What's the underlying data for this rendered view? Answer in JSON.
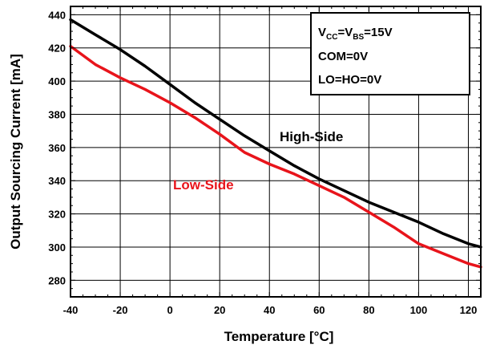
{
  "chart_data": {
    "type": "line",
    "xlabel": "Temperature [°C]",
    "ylabel": "Output Sourcing Current [mA]",
    "xlim": [
      -40,
      125
    ],
    "ylim": [
      270,
      445
    ],
    "x_ticks": [
      -40,
      -20,
      0,
      20,
      40,
      60,
      80,
      100,
      120
    ],
    "y_ticks": [
      280,
      300,
      320,
      340,
      360,
      380,
      400,
      420,
      440
    ],
    "grid": true,
    "series": [
      {
        "name": "High-Side",
        "color": "#000000",
        "x": [
          -40,
          -30,
          -20,
          -10,
          0,
          10,
          20,
          30,
          40,
          50,
          60,
          70,
          80,
          90,
          100,
          110,
          120,
          125
        ],
        "y": [
          437,
          428,
          419,
          409,
          398,
          387,
          377,
          367,
          358,
          349,
          341,
          334,
          327,
          321,
          315,
          308,
          302,
          300
        ]
      },
      {
        "name": "Low-Side",
        "color": "#e8141b",
        "x": [
          -40,
          -30,
          -20,
          -10,
          0,
          10,
          20,
          30,
          40,
          50,
          60,
          70,
          80,
          90,
          100,
          110,
          120,
          125
        ],
        "y": [
          421,
          410,
          402,
          395,
          387,
          378,
          368,
          357,
          350,
          344,
          337,
          330,
          321,
          312,
          302,
          296,
          290,
          288
        ]
      }
    ],
    "legend_box": {
      "position": "top-right",
      "lines": [
        {
          "parts": [
            {
              "t": "V"
            },
            {
              "t": "CC",
              "sub": true
            },
            {
              "t": "=V"
            },
            {
              "t": "BS",
              "sub": true
            },
            {
              "t": "=15V"
            }
          ]
        },
        {
          "parts": [
            {
              "t": "COM=0V"
            }
          ]
        },
        {
          "parts": [
            {
              "t": "LO=HO=0V"
            }
          ]
        }
      ]
    }
  }
}
